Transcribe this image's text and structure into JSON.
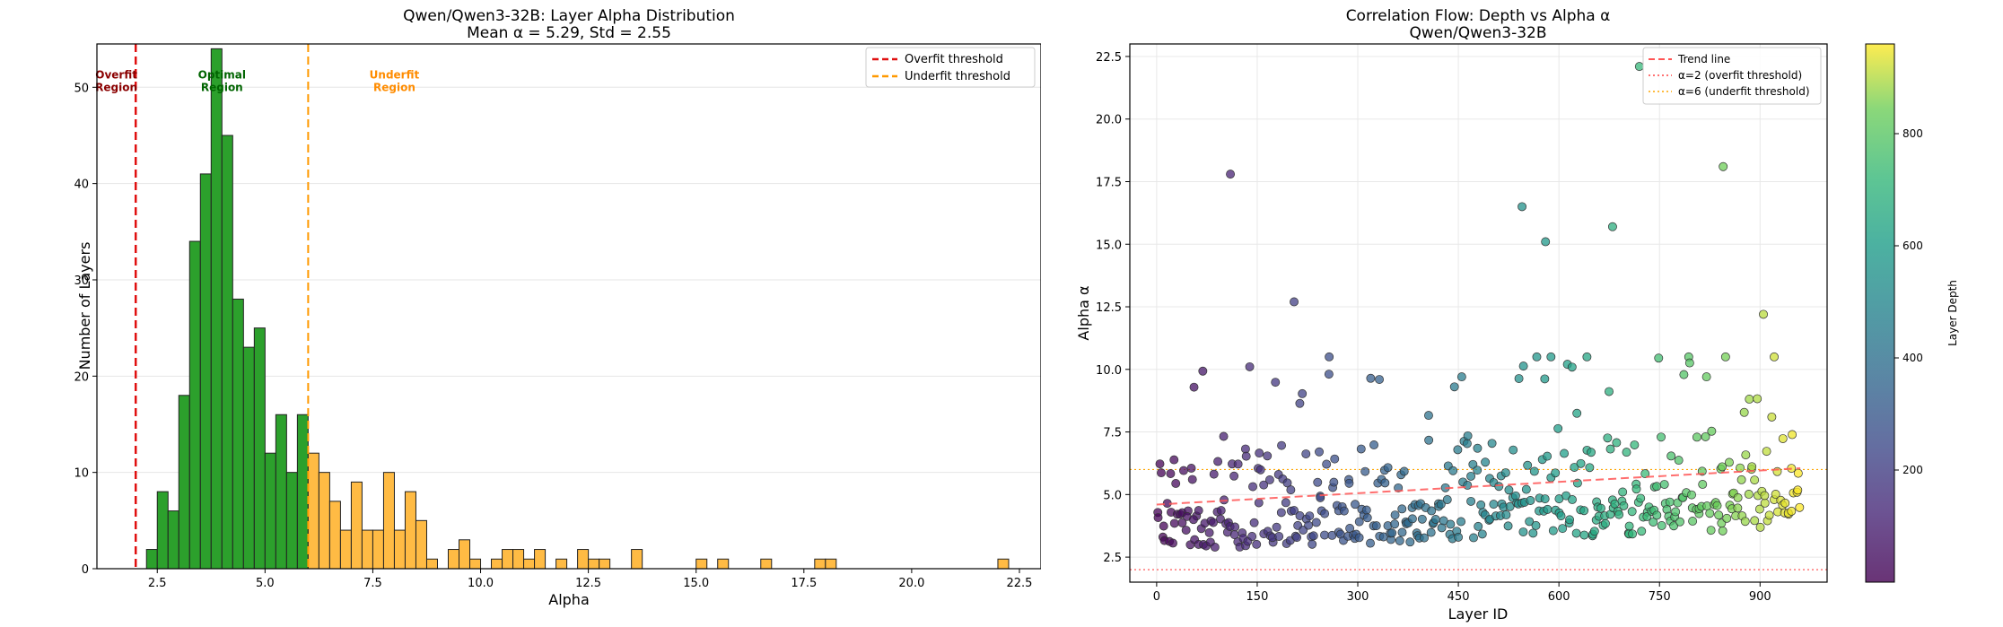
{
  "chart_data": [
    {
      "type": "bar",
      "title": "Qwen/Qwen3-32B: Layer Alpha Distribution",
      "subtitle": "Mean α = 5.29, Std = 2.55",
      "xlabel": "Alpha",
      "ylabel": "Number of Layers",
      "xlim": [
        1.1,
        23.0
      ],
      "ylim": [
        0,
        54.5
      ],
      "xticks": [
        2.5,
        5.0,
        7.5,
        10.0,
        12.5,
        15.0,
        17.5,
        20.0,
        22.5
      ],
      "xtick_labels": [
        "2.5",
        "5.0",
        "7.5",
        "10.0",
        "12.5",
        "15.0",
        "17.5",
        "20.0",
        "22.5"
      ],
      "yticks": [
        0,
        10,
        20,
        30,
        40,
        50
      ],
      "ytick_labels": [
        "0",
        "10",
        "20",
        "30",
        "40",
        "50"
      ],
      "grid": "y",
      "legend_position": "top-right",
      "bin_width": 0.25,
      "bins": [
        {
          "start": 2.25,
          "count": 2,
          "region": "optimal"
        },
        {
          "start": 2.5,
          "count": 8,
          "region": "optimal"
        },
        {
          "start": 2.75,
          "count": 6,
          "region": "optimal"
        },
        {
          "start": 3.0,
          "count": 18,
          "region": "optimal"
        },
        {
          "start": 3.25,
          "count": 34,
          "region": "optimal"
        },
        {
          "start": 3.5,
          "count": 41,
          "region": "optimal"
        },
        {
          "start": 3.75,
          "count": 54,
          "region": "optimal"
        },
        {
          "start": 4.0,
          "count": 45,
          "region": "optimal"
        },
        {
          "start": 4.25,
          "count": 28,
          "region": "optimal"
        },
        {
          "start": 4.5,
          "count": 23,
          "region": "optimal"
        },
        {
          "start": 4.75,
          "count": 25,
          "region": "optimal"
        },
        {
          "start": 5.0,
          "count": 12,
          "region": "optimal"
        },
        {
          "start": 5.25,
          "count": 16,
          "region": "optimal"
        },
        {
          "start": 5.5,
          "count": 10,
          "region": "optimal"
        },
        {
          "start": 5.75,
          "count": 16,
          "region": "optimal"
        },
        {
          "start": 6.0,
          "count": 12,
          "region": "underfit"
        },
        {
          "start": 6.25,
          "count": 10,
          "region": "underfit"
        },
        {
          "start": 6.5,
          "count": 7,
          "region": "underfit"
        },
        {
          "start": 6.75,
          "count": 4,
          "region": "underfit"
        },
        {
          "start": 7.0,
          "count": 9,
          "region": "underfit"
        },
        {
          "start": 7.25,
          "count": 4,
          "region": "underfit"
        },
        {
          "start": 7.5,
          "count": 4,
          "region": "underfit"
        },
        {
          "start": 7.75,
          "count": 10,
          "region": "underfit"
        },
        {
          "start": 8.0,
          "count": 4,
          "region": "underfit"
        },
        {
          "start": 8.25,
          "count": 8,
          "region": "underfit"
        },
        {
          "start": 8.5,
          "count": 5,
          "region": "underfit"
        },
        {
          "start": 8.75,
          "count": 1,
          "region": "underfit"
        },
        {
          "start": 9.25,
          "count": 2,
          "region": "underfit"
        },
        {
          "start": 9.5,
          "count": 3,
          "region": "underfit"
        },
        {
          "start": 9.75,
          "count": 1,
          "region": "underfit"
        },
        {
          "start": 10.25,
          "count": 1,
          "region": "underfit"
        },
        {
          "start": 10.5,
          "count": 2,
          "region": "underfit"
        },
        {
          "start": 10.75,
          "count": 2,
          "region": "underfit"
        },
        {
          "start": 11.0,
          "count": 1,
          "region": "underfit"
        },
        {
          "start": 11.25,
          "count": 2,
          "region": "underfit"
        },
        {
          "start": 11.75,
          "count": 1,
          "region": "underfit"
        },
        {
          "start": 12.25,
          "count": 2,
          "region": "underfit"
        },
        {
          "start": 12.5,
          "count": 1,
          "region": "underfit"
        },
        {
          "start": 12.75,
          "count": 1,
          "region": "underfit"
        },
        {
          "start": 13.5,
          "count": 2,
          "region": "underfit"
        },
        {
          "start": 15.0,
          "count": 1,
          "region": "underfit"
        },
        {
          "start": 15.5,
          "count": 1,
          "region": "underfit"
        },
        {
          "start": 16.5,
          "count": 1,
          "region": "underfit"
        },
        {
          "start": 17.75,
          "count": 1,
          "region": "underfit"
        },
        {
          "start": 18.0,
          "count": 1,
          "region": "underfit"
        },
        {
          "start": 22.0,
          "count": 1,
          "region": "underfit"
        }
      ],
      "thresholds": [
        {
          "name": "Overfit threshold",
          "value": 2,
          "color": "#e01010",
          "style": "dashed"
        },
        {
          "name": "Underfit threshold",
          "value": 6,
          "color": "#ff9900",
          "style": "dashed"
        }
      ],
      "region_labels": [
        {
          "text": [
            "Overfit",
            "Region"
          ],
          "color": "#8b0000",
          "x": 1.55,
          "y": 50
        },
        {
          "text": [
            "Optimal",
            "Region"
          ],
          "color": "#006400",
          "x": 4.0,
          "y": 50
        },
        {
          "text": [
            "Underfit",
            "Region"
          ],
          "color": "#ff8c00",
          "x": 8.0,
          "y": 50
        }
      ],
      "colors": {
        "optimal": "#2ca02c",
        "underfit": "#ffbb44",
        "edge": "#222222"
      }
    },
    {
      "type": "scatter",
      "title": "Correlation Flow: Depth vs Alpha α",
      "subtitle": "Qwen/Qwen3-32B",
      "xlabel": "Layer ID",
      "ylabel": "Alpha α",
      "xlim": [
        -40,
        1000
      ],
      "ylim": [
        1.5,
        23.0
      ],
      "xticks": [
        0,
        150,
        300,
        450,
        600,
        750,
        900
      ],
      "xtick_labels": [
        "0",
        "150",
        "300",
        "450",
        "600",
        "750",
        "900"
      ],
      "yticks": [
        2.5,
        5.0,
        7.5,
        10.0,
        12.5,
        15.0,
        17.5,
        20.0,
        22.5
      ],
      "ytick_labels": [
        "2.5",
        "5.0",
        "7.5",
        "10.0",
        "12.5",
        "15.0",
        "17.5",
        "20.0",
        "22.5"
      ],
      "grid": "both",
      "legend_position": "top-right",
      "trend_line": {
        "name": "Trend line",
        "x": [
          0,
          960
        ],
        "y": [
          4.6,
          6.05
        ],
        "color": "#ff5555"
      },
      "thresholds": [
        {
          "name": "α=2 (overfit threshold)",
          "value": 2,
          "color": "#ff4444"
        },
        {
          "name": "α=6 (underfit threshold)",
          "value": 6,
          "color": "#ffa500"
        }
      ],
      "colorbar": {
        "label": "Layer Depth",
        "min": 0,
        "max": 960,
        "ticks": [
          200,
          400,
          600,
          800
        ],
        "tick_labels": [
          "200",
          "400",
          "600",
          "800"
        ],
        "colormap": "viridis"
      },
      "notable_points": [
        {
          "x": 55,
          "y": 4.0
        },
        {
          "x": 110,
          "y": 17.8
        },
        {
          "x": 205,
          "y": 12.7
        },
        {
          "x": 545,
          "y": 16.5
        },
        {
          "x": 580,
          "y": 15.1
        },
        {
          "x": 680,
          "y": 15.7
        },
        {
          "x": 720,
          "y": 22.1
        },
        {
          "x": 845,
          "y": 18.1
        },
        {
          "x": 905,
          "y": 12.2
        }
      ],
      "n_points": 448,
      "x_range": [
        0,
        960
      ],
      "bulk_alpha_range": [
        2.3,
        9.0
      ],
      "point_style": {
        "opacity": 0.75,
        "edge": "#333333"
      }
    }
  ]
}
